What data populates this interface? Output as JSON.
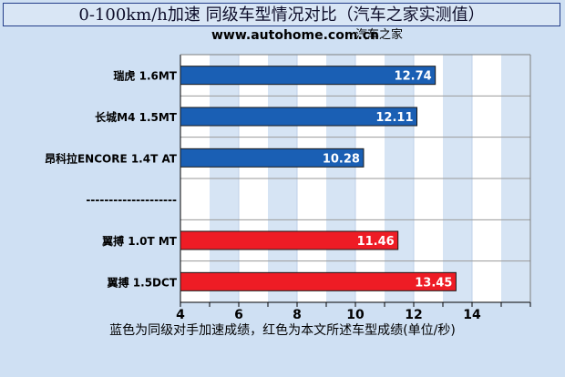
{
  "header": {
    "title": "0-100km/h加速 同级车型情况对比（汽车之家实测值）",
    "source_label": "汽车之家",
    "source_url": "www.autohome.com.cn"
  },
  "footnote": "蓝色为同级对手加速成绩，红色为本文所述车型成绩(单位/秒)",
  "chart_data": {
    "type": "bar",
    "orientation": "horizontal",
    "categories": [
      "瑞虎 1.6MT",
      "长城M4 1.5MT",
      "昂科拉ENCORE 1.4T AT",
      "--------------------",
      "翼搏 1.0T MT",
      "翼搏 1.5DCT"
    ],
    "values": [
      12.74,
      12.11,
      10.28,
      null,
      11.46,
      13.45
    ],
    "colors": [
      "#1a5fb4",
      "#1a5fb4",
      "#1a5fb4",
      null,
      "#ee1c25",
      "#ee1c25"
    ],
    "value_labels": [
      "12.74",
      "12.11",
      "10.28",
      "",
      "11.46",
      "13.45"
    ],
    "xlim": [
      4,
      16
    ],
    "xticks": [
      4,
      6,
      8,
      10,
      12,
      14
    ],
    "legend": "none",
    "grid": true
  },
  "colors": {
    "background": "#cfe0f3",
    "plot_background": "#ffffff",
    "stripe": "#d6e4f4",
    "competitor": "#1a5fb4",
    "featured": "#ee1c25"
  }
}
